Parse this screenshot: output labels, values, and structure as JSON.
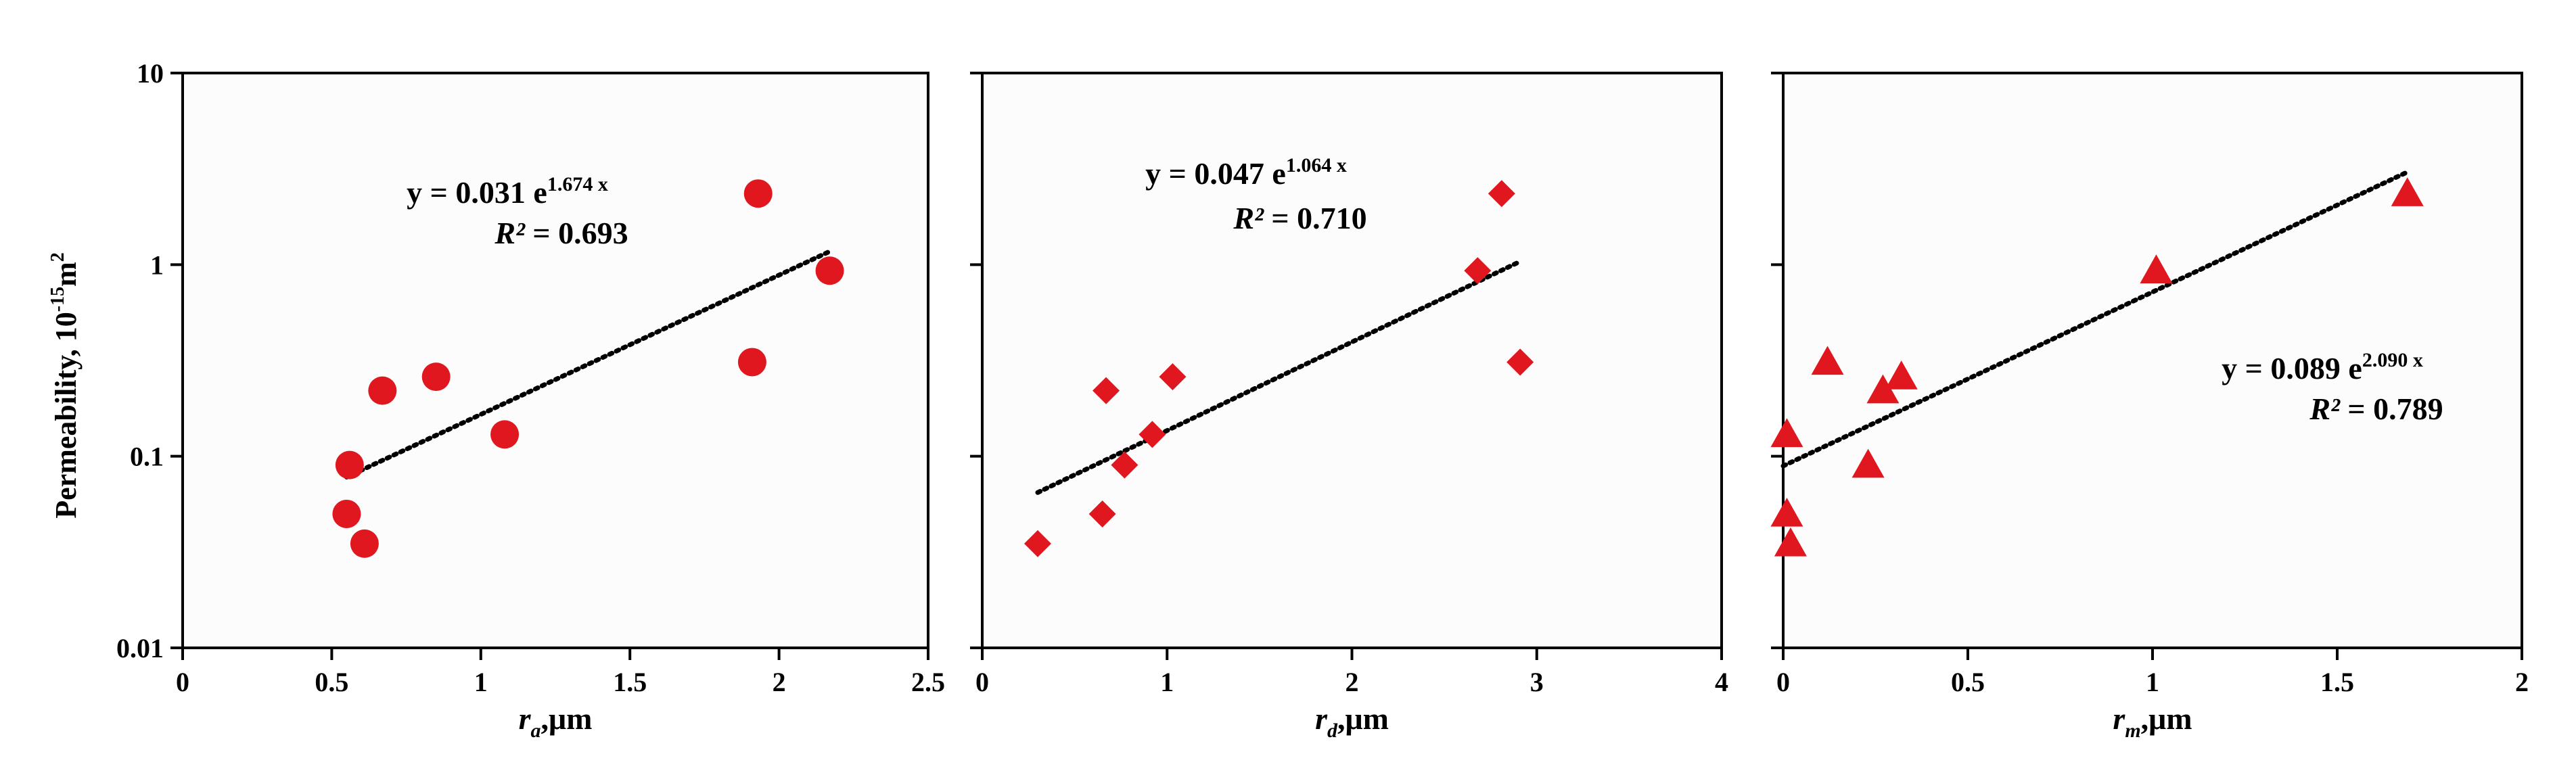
{
  "ylabel": "Permeability, 10",
  "ylabel_sup": "-15",
  "ylabel_end": "m",
  "ylabel_end_sup": "2",
  "y_scale": "log",
  "ylim": [
    0.01,
    10
  ],
  "y_ticks": [
    "10",
    "1",
    "0.1",
    "0.01"
  ],
  "colors": {
    "marker": "#e0171f",
    "trendline": "#000000",
    "plot_bg": "#fcfcfc",
    "axis": "#000000"
  },
  "chart_data": [
    {
      "type": "scatter",
      "marker": "circle",
      "xlabel_var": "r",
      "xlabel_sub": "a",
      "xlabel_unit": ",μm",
      "xlim": [
        0,
        2.5
      ],
      "x_ticks": [
        "0",
        "0.5",
        "1",
        "1.5",
        "2",
        "2.5"
      ],
      "points": [
        {
          "x": 0.56,
          "y": 0.09
        },
        {
          "x": 0.55,
          "y": 0.05
        },
        {
          "x": 0.61,
          "y": 0.035
        },
        {
          "x": 0.67,
          "y": 0.22
        },
        {
          "x": 0.85,
          "y": 0.26
        },
        {
          "x": 1.08,
          "y": 0.13
        },
        {
          "x": 1.91,
          "y": 0.31
        },
        {
          "x": 1.93,
          "y": 2.35
        },
        {
          "x": 2.17,
          "y": 0.93
        }
      ],
      "trend": {
        "a": 0.031,
        "b": 1.674,
        "x_range": [
          0.55,
          2.17
        ]
      },
      "equation_prefix": "y = 0.031 e",
      "equation_exp": "1.674 x",
      "r2_label": "R²",
      "r2_value": " = 0.693"
    },
    {
      "type": "scatter",
      "marker": "diamond",
      "xlabel_var": "r",
      "xlabel_sub": "d",
      "xlabel_unit": ",μm",
      "xlim": [
        0,
        4
      ],
      "x_ticks": [
        "0",
        "1",
        "2",
        "3",
        "4"
      ],
      "points": [
        {
          "x": 0.3,
          "y": 0.035
        },
        {
          "x": 0.65,
          "y": 0.05
        },
        {
          "x": 0.67,
          "y": 0.22
        },
        {
          "x": 0.77,
          "y": 0.09
        },
        {
          "x": 0.92,
          "y": 0.13
        },
        {
          "x": 1.03,
          "y": 0.26
        },
        {
          "x": 2.68,
          "y": 0.93
        },
        {
          "x": 2.81,
          "y": 2.35
        },
        {
          "x": 2.91,
          "y": 0.31
        }
      ],
      "trend": {
        "a": 0.047,
        "b": 1.064,
        "x_range": [
          0.3,
          2.91
        ]
      },
      "equation_prefix": "y = 0.047 e",
      "equation_exp": "1.064 x",
      "r2_label": "R²",
      "r2_value": " = 0.710"
    },
    {
      "type": "scatter",
      "marker": "triangle",
      "xlabel_var": "r",
      "xlabel_sub": "m",
      "xlabel_unit": ",μm",
      "xlim": [
        0,
        2
      ],
      "x_ticks": [
        "0",
        "0.5",
        "1",
        "1.5",
        "2"
      ],
      "points": [
        {
          "x": 0.01,
          "y": 0.13
        },
        {
          "x": 0.01,
          "y": 0.05
        },
        {
          "x": 0.02,
          "y": 0.035
        },
        {
          "x": 0.12,
          "y": 0.31
        },
        {
          "x": 0.23,
          "y": 0.09
        },
        {
          "x": 0.27,
          "y": 0.22
        },
        {
          "x": 0.32,
          "y": 0.26
        },
        {
          "x": 1.01,
          "y": 0.93
        },
        {
          "x": 1.69,
          "y": 2.35
        }
      ],
      "trend": {
        "a": 0.089,
        "b": 2.09,
        "x_range": [
          0.0,
          1.69
        ]
      },
      "equation_prefix": "y = 0.089 e",
      "equation_exp": "2.090 x",
      "r2_label": "R²",
      "r2_value": " = 0.789"
    }
  ]
}
